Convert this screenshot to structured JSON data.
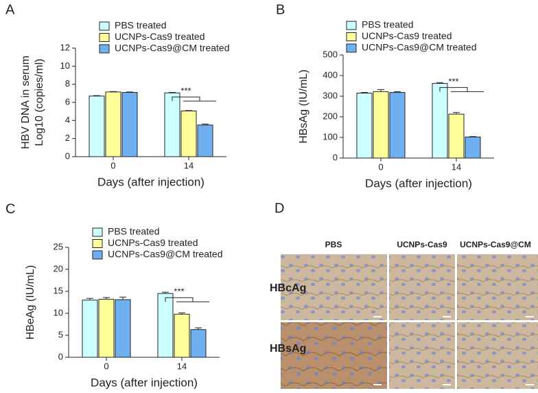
{
  "chart_data": [
    {
      "type": "bar",
      "label": "A",
      "ylabel": [
        "HBV DNA in serum",
        "Log10 (copies/ml)"
      ],
      "xlabel": "Days (after injection)",
      "categories": [
        "0",
        "14"
      ],
      "ylim": [
        0,
        12
      ],
      "yticks": [
        0,
        2,
        4,
        6,
        8,
        10,
        12
      ],
      "annotation": "***",
      "series": [
        {
          "name": "PBS treated",
          "color": "#ccffff",
          "values": [
            6.7,
            7.05
          ],
          "errors": [
            0.05,
            0.05
          ]
        },
        {
          "name": "UCNPs-Cas9 treated",
          "color": "#ffff99",
          "values": [
            7.15,
            5.05
          ],
          "errors": [
            0.05,
            0.05
          ]
        },
        {
          "name": "UCNPs-Cas9@CM treated",
          "color": "#6fb0f0",
          "values": [
            7.1,
            3.5
          ],
          "errors": [
            0.05,
            0.1
          ]
        }
      ]
    },
    {
      "type": "bar",
      "label": "B",
      "ylabel": [
        "HBsAg (IU/mL)"
      ],
      "xlabel": "Days (after injection)",
      "categories": [
        "0",
        "14"
      ],
      "ylim": [
        0,
        500
      ],
      "yticks": [
        0,
        100,
        200,
        300,
        400,
        500
      ],
      "annotation": "***",
      "series": [
        {
          "name": "PBS treated",
          "color": "#ccffff",
          "values": [
            315,
            362
          ],
          "errors": [
            3,
            4
          ]
        },
        {
          "name": "UCNPs-Cas9 treated",
          "color": "#ffff99",
          "values": [
            322,
            213
          ],
          "errors": [
            10,
            8
          ]
        },
        {
          "name": "UCNPs-Cas9@CM treated",
          "color": "#6fb0f0",
          "values": [
            318,
            102
          ],
          "errors": [
            4,
            2
          ]
        }
      ]
    },
    {
      "type": "bar",
      "label": "C",
      "ylabel": [
        "HBeAg (IU/mL)"
      ],
      "xlabel": "Days (after injection)",
      "categories": [
        "0",
        "14"
      ],
      "ylim": [
        0,
        25
      ],
      "yticks": [
        0,
        5,
        10,
        15,
        20,
        25
      ],
      "annotation": "***",
      "series": [
        {
          "name": "PBS treated",
          "color": "#ccffff",
          "values": [
            13,
            14.5
          ],
          "errors": [
            0.4,
            0.3
          ]
        },
        {
          "name": "UCNPs-Cas9 treated",
          "color": "#ffff99",
          "values": [
            13.2,
            9.8
          ],
          "errors": [
            0.4,
            0.3
          ]
        },
        {
          "name": "UCNPs-Cas9@CM treated",
          "color": "#6fb0f0",
          "values": [
            13.1,
            6.3
          ],
          "errors": [
            0.6,
            0.4
          ]
        }
      ]
    }
  ],
  "panel_d": {
    "label": "D",
    "columns": [
      "PBS",
      "UCNPs-Cas9",
      "UCNPs-Cas9@CM"
    ],
    "rows": [
      "HBcAg",
      "HBsAg"
    ]
  }
}
